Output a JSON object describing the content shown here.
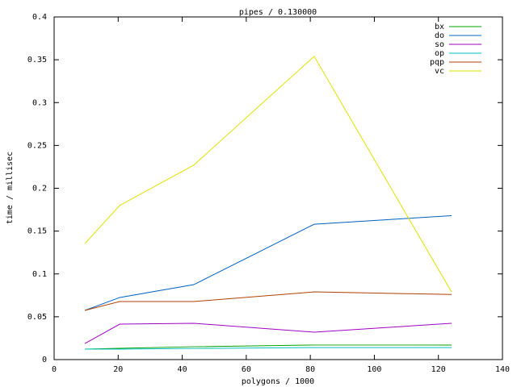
{
  "chart_data": {
    "type": "line",
    "title": "pipes / 0.130000",
    "xlabel": "polygons / 1000",
    "ylabel": "time / millisec",
    "x": [
      9.6,
      20.5,
      43.6,
      81.2,
      124.1
    ],
    "series": [
      {
        "name": "bx",
        "color": "#00a000",
        "values": [
          0.0122,
          0.0132,
          0.015,
          0.017,
          0.017
        ]
      },
      {
        "name": "do",
        "color": "#0060c0",
        "values": [
          0.0574,
          0.0725,
          0.0875,
          0.158,
          0.168
        ]
      },
      {
        "name": "so",
        "color": "#a000c0",
        "values": [
          0.0188,
          0.0414,
          0.0424,
          0.032,
          0.0424
        ]
      },
      {
        "name": "op",
        "color": "#00c0c0",
        "values": [
          0.0122,
          0.0122,
          0.013,
          0.014,
          0.014
        ]
      },
      {
        "name": "pqp",
        "color": "#b04000",
        "values": [
          0.0574,
          0.0678,
          0.0678,
          0.079,
          0.076
        ]
      },
      {
        "name": "vc",
        "color": "#e0e000",
        "values": [
          0.1355,
          0.18,
          0.227,
          0.354,
          0.079
        ]
      }
    ],
    "xlim": [
      0,
      140
    ],
    "xticks": [
      0,
      20,
      40,
      60,
      80,
      100,
      120,
      140
    ],
    "ylim": [
      0,
      0.4
    ],
    "yticks": [
      0,
      0.05,
      0.1,
      0.15,
      0.2,
      0.25,
      0.3,
      0.35,
      0.4
    ],
    "legend": "top-right"
  }
}
